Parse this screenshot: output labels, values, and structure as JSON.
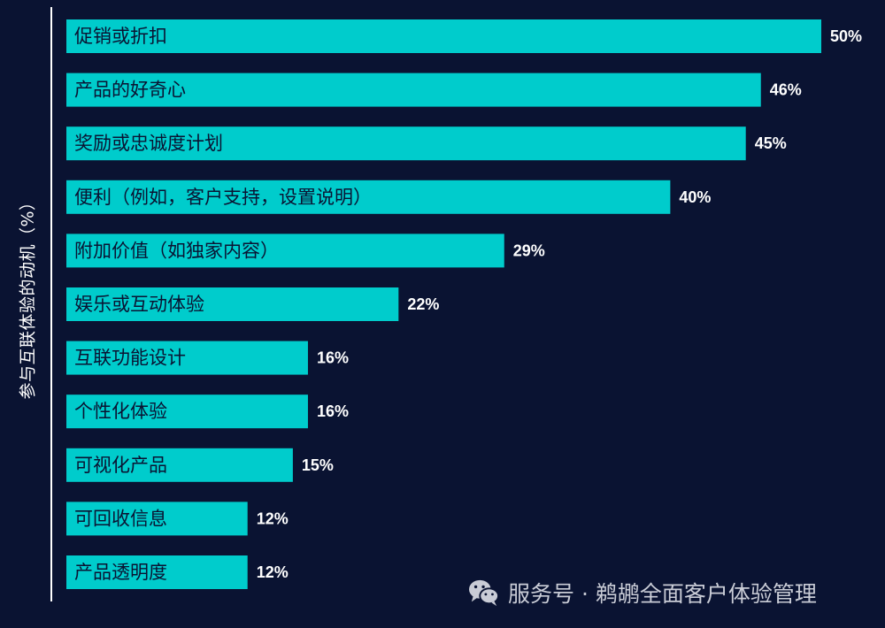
{
  "chart_data": {
    "type": "bar",
    "orientation": "horizontal",
    "ylabel": "参与互联体验的动机（%）",
    "xlim": [
      0,
      50
    ],
    "grid": false,
    "bar_color": "#00cccc",
    "background_color": "#0a1332",
    "categories": [
      "促销或折扣",
      "产品的好奇心",
      "奖励或忠诚度计划",
      "便利（例如，客户支持，设置说明）",
      "附加价值（如独家内容）",
      "娱乐或互动体验",
      "互联功能设计",
      "个性化体验",
      "可视化产品",
      "可回收信息",
      "产品透明度"
    ],
    "values": [
      50,
      46,
      45,
      40,
      29,
      22,
      16,
      16,
      15,
      12,
      12
    ],
    "value_labels": [
      "50%",
      "46%",
      "45%",
      "40%",
      "29%",
      "22%",
      "16%",
      "16%",
      "15%",
      "12%",
      "12%"
    ]
  },
  "watermark": {
    "icon": "wechat-icon",
    "text": "服务号 · 鹈鹕全面客户体验管理"
  }
}
